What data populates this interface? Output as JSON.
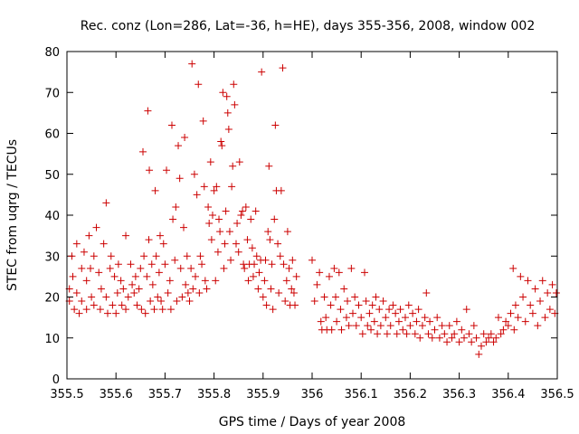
{
  "chart_data": {
    "type": "scatter",
    "title": "Rec. conz (Lon=286, Lat=-36, h=HE), days 355-356, 2008, window 002",
    "xlabel": "GPS time / Days of year 2008",
    "ylabel": "STEC from uqrg / TECUs",
    "xlim": [
      355.5,
      356.5
    ],
    "ylim": [
      0,
      80
    ],
    "xticks": [
      355.5,
      355.6,
      355.7,
      355.8,
      355.9,
      356,
      356.1,
      356.2,
      356.3,
      356.4,
      356.5
    ],
    "xtick_labels": [
      "355.5",
      "355.6",
      "355.7",
      "355.8",
      "355.9",
      "356",
      "356.1",
      "356.2",
      "356.3",
      "356.4",
      "356.5"
    ],
    "yticks": [
      0,
      10,
      20,
      30,
      40,
      50,
      60,
      70,
      80
    ],
    "ytick_labels": [
      "0",
      "10",
      "20",
      "30",
      "40",
      "50",
      "60",
      "70",
      "80"
    ],
    "grid": false,
    "marker": "plus",
    "color": "#cc0000",
    "series": [
      {
        "name": "",
        "points": [
          [
            355.505,
            22
          ],
          [
            355.505,
            19
          ],
          [
            355.51,
            30
          ],
          [
            355.512,
            25
          ],
          [
            355.515,
            17
          ],
          [
            355.52,
            33
          ],
          [
            355.52,
            21
          ],
          [
            355.525,
            16
          ],
          [
            355.53,
            27
          ],
          [
            355.53,
            19
          ],
          [
            355.535,
            31
          ],
          [
            355.54,
            24
          ],
          [
            355.54,
            17
          ],
          [
            355.545,
            35
          ],
          [
            355.548,
            27
          ],
          [
            355.55,
            20
          ],
          [
            355.555,
            30
          ],
          [
            355.555,
            18
          ],
          [
            355.56,
            37
          ],
          [
            355.565,
            26
          ],
          [
            355.568,
            17
          ],
          [
            355.57,
            22
          ],
          [
            355.575,
            33
          ],
          [
            355.58,
            43
          ],
          [
            355.58,
            20
          ],
          [
            355.583,
            16
          ],
          [
            355.588,
            27
          ],
          [
            355.59,
            30
          ],
          [
            355.593,
            18
          ],
          [
            355.597,
            25
          ],
          [
            355.6,
            16
          ],
          [
            355.603,
            21
          ],
          [
            355.605,
            28
          ],
          [
            355.61,
            24
          ],
          [
            355.612,
            18
          ],
          [
            355.615,
            22
          ],
          [
            355.62,
            35
          ],
          [
            355.62,
            17
          ],
          [
            355.625,
            20
          ],
          [
            355.63,
            28
          ],
          [
            355.633,
            23
          ],
          [
            355.637,
            21
          ],
          [
            355.64,
            25
          ],
          [
            355.643,
            18
          ],
          [
            355.647,
            22
          ],
          [
            355.65,
            27
          ],
          [
            355.652,
            17
          ],
          [
            355.655,
            55.5
          ],
          [
            355.657,
            30
          ],
          [
            355.66,
            16
          ],
          [
            355.663,
            25
          ],
          [
            355.665,
            65.5
          ],
          [
            355.667,
            34
          ],
          [
            355.668,
            51
          ],
          [
            355.67,
            19
          ],
          [
            355.673,
            28
          ],
          [
            355.675,
            23
          ],
          [
            355.678,
            17
          ],
          [
            355.68,
            46
          ],
          [
            355.682,
            30
          ],
          [
            355.685,
            20
          ],
          [
            355.688,
            26
          ],
          [
            355.69,
            35
          ],
          [
            355.692,
            19
          ],
          [
            355.695,
            17
          ],
          [
            355.697,
            33
          ],
          [
            355.7,
            28
          ],
          [
            355.703,
            51
          ],
          [
            355.706,
            21
          ],
          [
            355.71,
            24
          ],
          [
            355.712,
            17
          ],
          [
            355.714,
            62
          ],
          [
            355.716,
            39
          ],
          [
            355.72,
            29
          ],
          [
            355.722,
            42
          ],
          [
            355.724,
            19
          ],
          [
            355.727,
            57
          ],
          [
            355.73,
            49
          ],
          [
            355.732,
            27
          ],
          [
            355.735,
            20
          ],
          [
            355.738,
            37
          ],
          [
            355.74,
            59
          ],
          [
            355.742,
            23
          ],
          [
            355.745,
            30
          ],
          [
            355.747,
            21
          ],
          [
            355.75,
            19
          ],
          [
            355.753,
            27
          ],
          [
            355.755,
            77
          ],
          [
            355.757,
            22
          ],
          [
            355.76,
            50
          ],
          [
            355.762,
            25
          ],
          [
            355.765,
            45
          ],
          [
            355.768,
            72
          ],
          [
            355.77,
            21
          ],
          [
            355.772,
            30
          ],
          [
            355.775,
            28
          ],
          [
            355.778,
            63
          ],
          [
            355.78,
            47
          ],
          [
            355.782,
            24
          ],
          [
            355.785,
            22
          ],
          [
            355.788,
            42
          ],
          [
            355.79,
            38
          ],
          [
            355.793,
            53
          ],
          [
            355.795,
            34
          ],
          [
            355.797,
            40
          ],
          [
            355.8,
            46
          ],
          [
            355.803,
            24
          ],
          [
            355.805,
            47
          ],
          [
            355.808,
            31
          ],
          [
            355.81,
            39
          ],
          [
            355.812,
            36
          ],
          [
            355.814,
            58
          ],
          [
            355.816,
            57
          ],
          [
            355.818,
            70
          ],
          [
            355.82,
            27
          ],
          [
            355.822,
            33
          ],
          [
            355.824,
            41
          ],
          [
            355.826,
            69
          ],
          [
            355.828,
            65
          ],
          [
            355.83,
            61
          ],
          [
            355.832,
            36
          ],
          [
            355.834,
            29
          ],
          [
            355.836,
            47
          ],
          [
            355.838,
            52
          ],
          [
            355.84,
            72
          ],
          [
            355.842,
            67
          ],
          [
            355.845,
            33
          ],
          [
            355.847,
            38
          ],
          [
            355.85,
            31
          ],
          [
            355.852,
            53
          ],
          [
            355.855,
            40
          ],
          [
            355.858,
            41
          ],
          [
            355.86,
            28
          ],
          [
            355.862,
            27
          ],
          [
            355.865,
            42
          ],
          [
            355.868,
            34
          ],
          [
            355.87,
            24
          ],
          [
            355.872,
            28
          ],
          [
            355.875,
            39
          ],
          [
            355.878,
            32
          ],
          [
            355.88,
            25
          ],
          [
            355.882,
            28
          ],
          [
            355.885,
            41
          ],
          [
            355.887,
            30
          ],
          [
            355.89,
            22
          ],
          [
            355.892,
            26
          ],
          [
            355.895,
            29
          ],
          [
            355.897,
            75
          ],
          [
            355.9,
            20
          ],
          [
            355.903,
            24
          ],
          [
            355.905,
            29
          ],
          [
            355.907,
            18
          ],
          [
            355.91,
            36
          ],
          [
            355.912,
            52
          ],
          [
            355.914,
            34
          ],
          [
            355.916,
            22
          ],
          [
            355.918,
            28
          ],
          [
            355.92,
            17
          ],
          [
            355.923,
            39
          ],
          [
            355.925,
            62
          ],
          [
            355.927,
            46
          ],
          [
            355.93,
            33
          ],
          [
            355.932,
            21
          ],
          [
            355.935,
            30
          ],
          [
            355.937,
            46
          ],
          [
            355.94,
            76
          ],
          [
            355.942,
            28
          ],
          [
            355.945,
            19
          ],
          [
            355.948,
            24
          ],
          [
            355.95,
            36
          ],
          [
            355.953,
            27
          ],
          [
            355.955,
            18
          ],
          [
            355.958,
            22
          ],
          [
            355.96,
            29
          ],
          [
            355.963,
            21
          ],
          [
            355.965,
            18
          ],
          [
            355.968,
            25
          ],
          [
            356.0,
            29
          ],
          [
            356.005,
            19
          ],
          [
            356.01,
            23
          ],
          [
            356.015,
            26
          ],
          [
            356.018,
            14
          ],
          [
            356.02,
            12
          ],
          [
            356.025,
            20
          ],
          [
            356.028,
            15
          ],
          [
            356.03,
            12
          ],
          [
            356.035,
            25
          ],
          [
            356.038,
            18
          ],
          [
            356.04,
            12
          ],
          [
            356.045,
            27
          ],
          [
            356.048,
            20
          ],
          [
            356.05,
            14
          ],
          [
            356.055,
            26
          ],
          [
            356.058,
            17
          ],
          [
            356.06,
            12
          ],
          [
            356.065,
            22
          ],
          [
            356.07,
            15
          ],
          [
            356.072,
            19
          ],
          [
            356.075,
            13
          ],
          [
            356.08,
            27
          ],
          [
            356.083,
            16
          ],
          [
            356.087,
            20
          ],
          [
            356.09,
            13
          ],
          [
            356.095,
            18
          ],
          [
            356.1,
            15
          ],
          [
            356.103,
            11
          ],
          [
            356.107,
            26
          ],
          [
            356.11,
            19
          ],
          [
            356.113,
            13
          ],
          [
            356.117,
            16
          ],
          [
            356.12,
            12
          ],
          [
            356.123,
            18
          ],
          [
            356.127,
            14
          ],
          [
            356.13,
            20
          ],
          [
            356.133,
            11
          ],
          [
            356.137,
            17
          ],
          [
            356.14,
            13
          ],
          [
            356.145,
            19
          ],
          [
            356.15,
            15
          ],
          [
            356.153,
            11
          ],
          [
            356.157,
            17
          ],
          [
            356.16,
            13
          ],
          [
            356.165,
            18
          ],
          [
            356.17,
            16
          ],
          [
            356.173,
            11
          ],
          [
            356.177,
            14
          ],
          [
            356.18,
            17
          ],
          [
            356.185,
            12
          ],
          [
            356.19,
            15
          ],
          [
            356.193,
            11
          ],
          [
            356.197,
            18
          ],
          [
            356.2,
            13
          ],
          [
            356.205,
            16
          ],
          [
            356.21,
            11
          ],
          [
            356.213,
            14
          ],
          [
            356.217,
            17
          ],
          [
            356.22,
            10
          ],
          [
            356.225,
            13
          ],
          [
            356.23,
            15
          ],
          [
            356.233,
            21
          ],
          [
            356.237,
            11
          ],
          [
            356.24,
            14
          ],
          [
            356.245,
            10
          ],
          [
            356.25,
            12
          ],
          [
            356.255,
            15
          ],
          [
            356.26,
            10
          ],
          [
            356.265,
            13
          ],
          [
            356.27,
            11
          ],
          [
            356.275,
            9
          ],
          [
            356.28,
            13
          ],
          [
            356.285,
            10
          ],
          [
            356.29,
            11
          ],
          [
            356.295,
            14
          ],
          [
            356.3,
            9
          ],
          [
            356.305,
            12
          ],
          [
            356.31,
            10
          ],
          [
            356.315,
            17
          ],
          [
            356.32,
            11
          ],
          [
            356.325,
            9
          ],
          [
            356.33,
            13
          ],
          [
            356.335,
            10
          ],
          [
            356.34,
            6
          ],
          [
            356.345,
            8
          ],
          [
            356.35,
            11
          ],
          [
            356.355,
            9
          ],
          [
            356.36,
            10
          ],
          [
            356.365,
            11
          ],
          [
            356.37,
            9
          ],
          [
            356.375,
            10
          ],
          [
            356.38,
            15
          ],
          [
            356.385,
            11
          ],
          [
            356.39,
            12
          ],
          [
            356.395,
            14
          ],
          [
            356.4,
            13
          ],
          [
            356.405,
            16
          ],
          [
            356.41,
            27
          ],
          [
            356.412,
            12
          ],
          [
            356.415,
            18
          ],
          [
            356.42,
            15
          ],
          [
            356.425,
            25
          ],
          [
            356.43,
            20
          ],
          [
            356.435,
            14
          ],
          [
            356.44,
            24
          ],
          [
            356.445,
            18
          ],
          [
            356.45,
            16
          ],
          [
            356.455,
            22
          ],
          [
            356.46,
            13
          ],
          [
            356.465,
            19
          ],
          [
            356.47,
            24
          ],
          [
            356.475,
            15
          ],
          [
            356.48,
            21
          ],
          [
            356.485,
            17
          ],
          [
            356.49,
            23
          ],
          [
            356.495,
            16
          ],
          [
            356.498,
            21
          ]
        ]
      }
    ]
  }
}
